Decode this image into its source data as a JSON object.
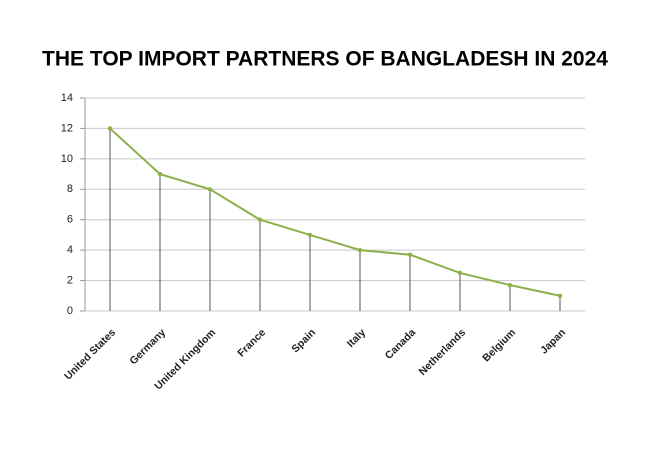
{
  "chart_data": {
    "type": "line",
    "title": "THE TOP IMPORT PARTNERS OF BANGLADESH IN 2024",
    "categories": [
      "United States",
      "Germany",
      "United Kingdom",
      "France",
      "Spain",
      "Italy",
      "Canada",
      "Netherlands",
      "Belgium",
      "Japan"
    ],
    "values": [
      12,
      9,
      8,
      6,
      5,
      4,
      3.7,
      2.5,
      1.7,
      1
    ],
    "color": "#8db04a",
    "drop_lines": true,
    "ylim": [
      0,
      14
    ],
    "yticks": [
      0,
      2,
      4,
      6,
      8,
      10,
      12,
      14
    ],
    "grid": true
  }
}
